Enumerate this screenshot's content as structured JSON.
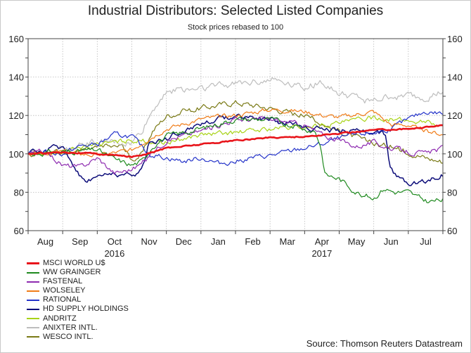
{
  "chart_data": {
    "type": "line",
    "title": "Industrial Distributors: Selected Listed Companies",
    "subtitle": "Stock prices rebased to 100",
    "ylim": [
      60,
      160
    ],
    "yticks": [
      60,
      80,
      100,
      120,
      140,
      160
    ],
    "x_range": [
      0,
      12
    ],
    "months": [
      {
        "label": "Aug",
        "pos": 0.5
      },
      {
        "label": "Sep",
        "pos": 1.5
      },
      {
        "label": "Oct",
        "pos": 2.5
      },
      {
        "label": "Nov",
        "pos": 3.5
      },
      {
        "label": "Dec",
        "pos": 4.5
      },
      {
        "label": "Jan",
        "pos": 5.5
      },
      {
        "label": "Feb",
        "pos": 6.5
      },
      {
        "label": "Mar",
        "pos": 7.5
      },
      {
        "label": "Apr",
        "pos": 8.5
      },
      {
        "label": "May",
        "pos": 9.5
      },
      {
        "label": "Jun",
        "pos": 10.5
      },
      {
        "label": "Jul",
        "pos": 11.5
      }
    ],
    "years": [
      {
        "label": "2016",
        "pos": 2.5
      },
      {
        "label": "2017",
        "pos": 8.5
      }
    ],
    "grid": true,
    "source": "Source: Thomson Reuters Datastream",
    "series": [
      {
        "name": "MSCI WORLD U$",
        "color": "#e8151b",
        "width": 2.6,
        "noise": 0.3,
        "points": [
          [
            0,
            100
          ],
          [
            1,
            101
          ],
          [
            2,
            100
          ],
          [
            3,
            98.5
          ],
          [
            3.4,
            100
          ],
          [
            4,
            103
          ],
          [
            5,
            105
          ],
          [
            6,
            107
          ],
          [
            7,
            108.5
          ],
          [
            8,
            109
          ],
          [
            9,
            110.5
          ],
          [
            10,
            112.5
          ],
          [
            11,
            113
          ],
          [
            12,
            115
          ]
        ]
      },
      {
        "name": "WW GRAINGER",
        "color": "#1f8a1f",
        "width": 1.2,
        "noise": 1.2,
        "points": [
          [
            0,
            100
          ],
          [
            1,
            101
          ],
          [
            2,
            102
          ],
          [
            2.5,
            97
          ],
          [
            3,
            94
          ],
          [
            3.3,
            96
          ],
          [
            3.6,
            104
          ],
          [
            4,
            109
          ],
          [
            5,
            113
          ],
          [
            6,
            118
          ],
          [
            7,
            118
          ],
          [
            8,
            113
          ],
          [
            8.3,
            112
          ],
          [
            8.45,
            105
          ],
          [
            8.6,
            89
          ],
          [
            9,
            87
          ],
          [
            9.5,
            80
          ],
          [
            10,
            77
          ],
          [
            10.3,
            82
          ],
          [
            10.6,
            80
          ],
          [
            11,
            80
          ],
          [
            11.3,
            77
          ],
          [
            11.6,
            75
          ],
          [
            12,
            76
          ]
        ]
      },
      {
        "name": "FASTENAL",
        "color": "#8e2bb0",
        "width": 1.2,
        "noise": 1.2,
        "points": [
          [
            0,
            100
          ],
          [
            0.5,
            101
          ],
          [
            1,
            94
          ],
          [
            1.5,
            93
          ],
          [
            2,
            98
          ],
          [
            2.5,
            90
          ],
          [
            3,
            92
          ],
          [
            3.3,
            95
          ],
          [
            3.6,
            101
          ],
          [
            4,
            107
          ],
          [
            5,
            112
          ],
          [
            6,
            118
          ],
          [
            7,
            118
          ],
          [
            8,
            115
          ],
          [
            8.5,
            110
          ],
          [
            9,
            107
          ],
          [
            9.5,
            104
          ],
          [
            10,
            106
          ],
          [
            10.5,
            103
          ],
          [
            11,
            101
          ],
          [
            11.5,
            100
          ],
          [
            12,
            103
          ]
        ]
      },
      {
        "name": "WOLSELEY",
        "color": "#f07c18",
        "width": 1.2,
        "noise": 1.0,
        "points": [
          [
            0,
            100
          ],
          [
            1,
            101
          ],
          [
            2,
            99
          ],
          [
            3,
            102
          ],
          [
            3.5,
            108
          ],
          [
            4,
            113
          ],
          [
            5,
            118
          ],
          [
            6,
            120
          ],
          [
            7,
            123
          ],
          [
            8,
            122
          ],
          [
            8.5,
            120
          ],
          [
            9,
            119
          ],
          [
            10,
            122
          ],
          [
            10.5,
            115
          ],
          [
            11,
            115
          ],
          [
            11.5,
            112
          ],
          [
            12,
            110
          ]
        ]
      },
      {
        "name": "RATIONAL",
        "color": "#2433c9",
        "width": 1.2,
        "noise": 1.1,
        "points": [
          [
            0,
            100
          ],
          [
            0.5,
            101
          ],
          [
            1,
            100
          ],
          [
            1.5,
            104
          ],
          [
            2,
            105
          ],
          [
            2.5,
            110
          ],
          [
            3,
            109
          ],
          [
            3.5,
            100
          ],
          [
            4,
            98
          ],
          [
            4.5,
            96
          ],
          [
            5,
            98
          ],
          [
            5.5,
            95
          ],
          [
            6,
            96
          ],
          [
            6.5,
            98
          ],
          [
            7,
            99
          ],
          [
            7.5,
            101
          ],
          [
            8,
            103
          ],
          [
            8.5,
            105
          ],
          [
            9,
            108
          ],
          [
            9.5,
            110
          ],
          [
            10,
            111
          ],
          [
            10.5,
            113
          ],
          [
            11,
            118
          ],
          [
            11.5,
            122
          ],
          [
            12,
            121
          ]
        ]
      },
      {
        "name": "HD SUPPLY HOLDINGS",
        "color": "#0d0d7a",
        "width": 1.5,
        "noise": 1.2,
        "points": [
          [
            0,
            100
          ],
          [
            0.5,
            102
          ],
          [
            1,
            104
          ],
          [
            1.4,
            92
          ],
          [
            1.6,
            86
          ],
          [
            2,
            88
          ],
          [
            2.5,
            90
          ],
          [
            3,
            88
          ],
          [
            3.3,
            92
          ],
          [
            3.5,
            106
          ],
          [
            4,
            108
          ],
          [
            5,
            116
          ],
          [
            6,
            120
          ],
          [
            7,
            118
          ],
          [
            8,
            114
          ],
          [
            9,
            112
          ],
          [
            10,
            112
          ],
          [
            10.35,
            110
          ],
          [
            10.45,
            93
          ],
          [
            10.7,
            88
          ],
          [
            11,
            85
          ],
          [
            11.5,
            86
          ],
          [
            11.8,
            88
          ],
          [
            12,
            89
          ]
        ]
      },
      {
        "name": "ANDRITZ",
        "color": "#a8d318",
        "width": 1.2,
        "noise": 1.1,
        "points": [
          [
            0,
            100
          ],
          [
            1,
            101
          ],
          [
            2,
            105
          ],
          [
            3,
            107
          ],
          [
            4,
            106
          ],
          [
            5,
            110
          ],
          [
            6,
            111
          ],
          [
            7,
            113
          ],
          [
            8,
            114
          ],
          [
            9,
            116
          ],
          [
            10,
            119
          ],
          [
            11,
            117
          ],
          [
            11.5,
            117
          ],
          [
            12,
            114
          ]
        ]
      },
      {
        "name": "ANIXTER INTL.",
        "color": "#bdbdbd",
        "width": 1.2,
        "noise": 1.6,
        "points": [
          [
            0,
            100
          ],
          [
            1,
            103
          ],
          [
            2,
            106
          ],
          [
            3,
            105
          ],
          [
            3.3,
            112
          ],
          [
            3.6,
            122
          ],
          [
            4,
            133
          ],
          [
            5,
            134
          ],
          [
            6,
            137
          ],
          [
            7,
            139
          ],
          [
            8,
            135
          ],
          [
            8.5,
            137
          ],
          [
            9,
            131
          ],
          [
            10,
            127
          ],
          [
            10.5,
            130
          ],
          [
            11,
            130
          ],
          [
            11.5,
            129
          ],
          [
            12,
            132
          ]
        ]
      },
      {
        "name": "WESCO INTL.",
        "color": "#7a7a16",
        "width": 1.2,
        "noise": 1.3,
        "points": [
          [
            0,
            100
          ],
          [
            1,
            100
          ],
          [
            2,
            103
          ],
          [
            2.7,
            104
          ],
          [
            3,
            97
          ],
          [
            3.3,
            100
          ],
          [
            3.6,
            112
          ],
          [
            4,
            120
          ],
          [
            5,
            124
          ],
          [
            6,
            127
          ],
          [
            7,
            124
          ],
          [
            8,
            120
          ],
          [
            8.5,
            116
          ],
          [
            9,
            112
          ],
          [
            10,
            105
          ],
          [
            10.5,
            104
          ],
          [
            11,
            101
          ],
          [
            11.5,
            98
          ],
          [
            12,
            96
          ]
        ]
      }
    ]
  }
}
